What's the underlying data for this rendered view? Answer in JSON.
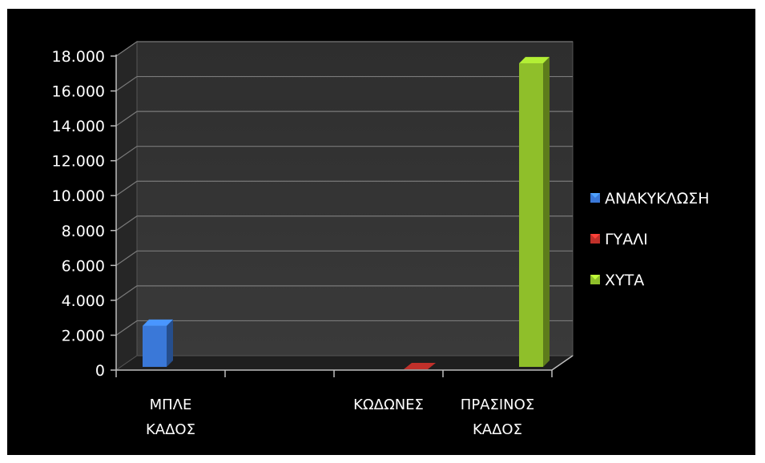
{
  "chart_data": {
    "type": "bar",
    "title": "",
    "xlabel": "",
    "ylabel": "",
    "ylim": [
      0,
      18000
    ],
    "y_ticks": [
      {
        "value": 0,
        "label": "0"
      },
      {
        "value": 2000,
        "label": "2.000"
      },
      {
        "value": 4000,
        "label": "4.000"
      },
      {
        "value": 6000,
        "label": "6.000"
      },
      {
        "value": 8000,
        "label": "8.000"
      },
      {
        "value": 10000,
        "label": "10.000"
      },
      {
        "value": 12000,
        "label": "12.000"
      },
      {
        "value": 14000,
        "label": "14.000"
      },
      {
        "value": 16000,
        "label": "16.000"
      },
      {
        "value": 18000,
        "label": "18.000"
      }
    ],
    "categories": [
      {
        "lines": [
          "ΜΠΛΕ",
          "ΚΑΔΟΣ"
        ]
      },
      {
        "lines": []
      },
      {
        "lines": [
          "ΚΩΔΩΝΕΣ"
        ]
      },
      {
        "lines": [
          "ΠΡΑΣΙΝΟΣ",
          "ΚΑΔΟΣ"
        ]
      }
    ],
    "series": [
      {
        "name": "ΑΝΑΚΥΚΛΩΣΗ",
        "color": "#3a78d8",
        "values": [
          2350,
          0,
          0,
          0
        ]
      },
      {
        "name": "ΓΥΑΛΙ",
        "color": "#c0302a",
        "values": [
          0,
          0,
          0,
          0
        ]
      },
      {
        "name": "ΧΥΤΑ",
        "color": "#8fbf2a",
        "values": [
          0,
          0,
          0,
          17400
        ]
      }
    ],
    "bars": [
      {
        "category": 0,
        "series": 0,
        "value": 2350
      },
      {
        "category": 2,
        "series": 1,
        "value": 0
      },
      {
        "category": 3,
        "series": 2,
        "value": 17400
      }
    ],
    "grid": true,
    "legend_position": "right",
    "style": "3d-column"
  }
}
